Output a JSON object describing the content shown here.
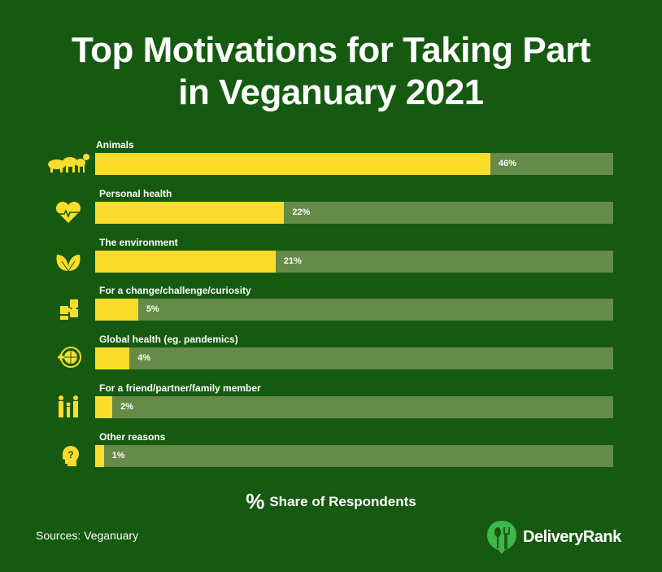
{
  "title_line1": "Top Motivations for Taking Part",
  "title_line2": "in Veganuary 2021",
  "chart_data": {
    "type": "bar",
    "orientation": "horizontal",
    "title": "Top Motivations for Taking Part in Veganuary 2021",
    "categories": [
      "Animals",
      "Personal health",
      "The environment",
      "For a change/challenge/curiosity",
      "Global health (eg. pandemics)",
      "For a friend/partner/family member",
      "Other reasons"
    ],
    "values": [
      46,
      22,
      21,
      5,
      4,
      2,
      1
    ],
    "value_labels": [
      "46%",
      "22%",
      "21%",
      "5%",
      "4%",
      "2%",
      "1%"
    ],
    "icons": [
      "animals-icon",
      "heart-pulse-icon",
      "leaf-icon",
      "puzzle-icon",
      "globe-icon",
      "family-icon",
      "question-head-icon"
    ],
    "xlim": [
      0,
      60.3
    ],
    "xlabel": "Share of Respondents",
    "grid": false
  },
  "legend": {
    "symbol": "%",
    "label": "Share of Respondents"
  },
  "source": "Sources: Veganuary",
  "logo": "DeliveryRank",
  "colors": {
    "background": "#155a10",
    "bar": "#fadd2a",
    "track": "#668a47",
    "logo": "#3fb54a"
  }
}
